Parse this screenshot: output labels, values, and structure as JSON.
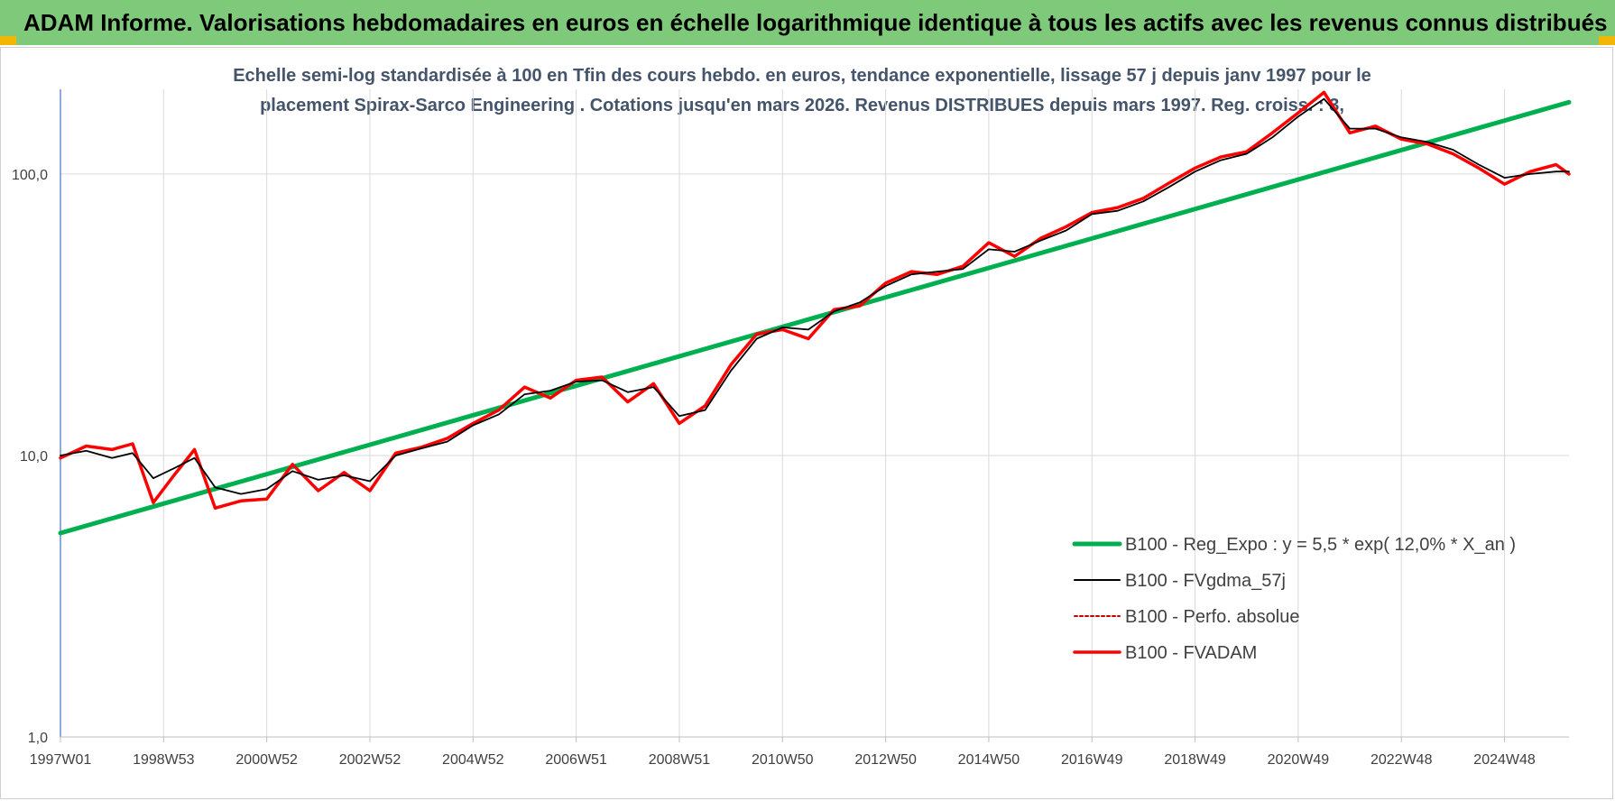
{
  "header": {
    "title": "ADAM Informe. Valorisations hebdomadaires en euros en échelle logarithmique identique à tous les actifs avec les revenus connus distribués"
  },
  "colors": {
    "banner": "#7fc97a",
    "corner_accent": "#f2b705",
    "trend": "#00b050",
    "smoothed": "#000000",
    "absolute_perf": "#c00000",
    "fvadam": "#ff0000",
    "subtitle_text": "#44546a",
    "axis_line": "#4472c4"
  },
  "chart_data": {
    "type": "line",
    "title_lines": [
      "Echelle semi-log standardisée à 100 en Tfin des cours hebdo. en euros, tendance exponentielle, lissage 57 j depuis janv 1997 pour le",
      "placement Spirax-Sarco Engineering . Cotations jusqu'en mars 2026. Revenus DISTRIBUES depuis mars 1997. Reg. croiss. : 3,"
    ],
    "y_scale": "log",
    "ylim": [
      1,
      200
    ],
    "xlim": [
      1997.0,
      2026.25
    ],
    "y_ticks": [
      {
        "value": 1,
        "label": "1,0"
      },
      {
        "value": 10,
        "label": "10,0"
      },
      {
        "value": 100,
        "label": "100,0"
      }
    ],
    "x_ticks": [
      {
        "value": 1997.0,
        "label": "1997W01"
      },
      {
        "value": 1999.0,
        "label": "1998W53"
      },
      {
        "value": 2001.0,
        "label": "2000W52"
      },
      {
        "value": 2003.0,
        "label": "2002W52"
      },
      {
        "value": 2005.0,
        "label": "2004W52"
      },
      {
        "value": 2007.0,
        "label": "2006W51"
      },
      {
        "value": 2009.0,
        "label": "2008W51"
      },
      {
        "value": 2011.0,
        "label": "2010W50"
      },
      {
        "value": 2013.0,
        "label": "2012W50"
      },
      {
        "value": 2015.0,
        "label": "2014W50"
      },
      {
        "value": 2017.0,
        "label": "2016W49"
      },
      {
        "value": 2019.0,
        "label": "2018W49"
      },
      {
        "value": 2021.0,
        "label": "2020W49"
      },
      {
        "value": 2023.0,
        "label": "2022W48"
      },
      {
        "value": 2025.0,
        "label": "2024W48"
      }
    ],
    "grid": true,
    "legend_position": "bottom-right",
    "series": [
      {
        "name": "B100 - Reg_Expo : y = 5,5 * exp( 12,0% * X_an )",
        "kind": "trend",
        "x": [
          1997.0,
          2026.25
        ],
        "y": [
          5.3,
          180
        ]
      },
      {
        "name": "B100 - FVgdma_57j",
        "kind": "smoothed",
        "x": [
          1997.0,
          1997.5,
          1998.0,
          1998.4,
          1998.8,
          1999.2,
          1999.6,
          2000.0,
          2000.5,
          2001.0,
          2001.5,
          2002.0,
          2002.5,
          2003.0,
          2003.5,
          2004.0,
          2004.5,
          2005.0,
          2005.5,
          2006.0,
          2006.5,
          2007.0,
          2007.5,
          2008.0,
          2008.5,
          2009.0,
          2009.5,
          2010.0,
          2010.5,
          2011.0,
          2011.5,
          2012.0,
          2012.5,
          2013.0,
          2013.5,
          2014.0,
          2014.5,
          2015.0,
          2015.5,
          2016.0,
          2016.5,
          2017.0,
          2017.5,
          2018.0,
          2018.5,
          2019.0,
          2019.5,
          2020.0,
          2020.5,
          2021.0,
          2021.5,
          2022.0,
          2022.5,
          2023.0,
          2023.5,
          2024.0,
          2024.5,
          2025.0,
          2025.5,
          2026.0,
          2026.25
        ],
        "y": [
          10.0,
          10.4,
          9.8,
          10.2,
          8.3,
          9.0,
          9.8,
          7.7,
          7.3,
          7.6,
          8.8,
          8.2,
          8.5,
          8.1,
          10.0,
          10.6,
          11.2,
          12.8,
          14.0,
          16.5,
          17.0,
          18.3,
          18.5,
          16.8,
          17.5,
          13.8,
          14.5,
          20.0,
          26.0,
          28.5,
          28.0,
          32.5,
          35.0,
          40.0,
          44.0,
          45.0,
          46.0,
          54.0,
          53.0,
          58.0,
          63.0,
          72.0,
          74.0,
          80.0,
          90.0,
          102.0,
          112.0,
          118.0,
          135.0,
          160.0,
          185.0,
          145.0,
          145.0,
          135.0,
          130.0,
          122.0,
          108.0,
          97.0,
          100.0,
          102.0,
          102.0
        ]
      },
      {
        "name": "B100 - Perfo. absolue",
        "kind": "absolute",
        "x": [
          1997.0,
          1997.5,
          1998.0,
          1998.4,
          1998.8,
          1999.2,
          1999.6,
          2000.0,
          2000.5,
          2001.0,
          2001.5,
          2002.0,
          2002.5,
          2003.0,
          2003.5,
          2004.0,
          2004.5,
          2005.0,
          2005.5,
          2006.0,
          2006.5,
          2007.0,
          2007.5,
          2008.0,
          2008.5,
          2009.0,
          2009.5,
          2010.0,
          2010.5,
          2011.0,
          2011.5,
          2012.0,
          2012.5,
          2013.0,
          2013.5,
          2014.0,
          2014.5,
          2015.0,
          2015.5,
          2016.0,
          2016.5,
          2017.0,
          2017.5,
          2018.0,
          2018.5,
          2019.0,
          2019.5,
          2020.0,
          2020.5,
          2021.0,
          2021.5,
          2022.0,
          2022.5,
          2023.0,
          2023.5,
          2024.0,
          2024.5,
          2025.0,
          2025.5,
          2026.0,
          2026.25
        ],
        "y": [
          9.8,
          10.8,
          10.5,
          11.0,
          6.8,
          8.5,
          10.5,
          6.5,
          6.9,
          7.0,
          9.3,
          7.5,
          8.7,
          7.5,
          10.2,
          10.7,
          11.5,
          13.0,
          14.5,
          17.5,
          16.0,
          18.5,
          19.0,
          15.5,
          18.0,
          13.0,
          15.0,
          21.0,
          27.0,
          28.0,
          26.0,
          33.0,
          34.0,
          41.0,
          45.0,
          44.0,
          47.0,
          57.0,
          51.0,
          59.0,
          65.0,
          73.0,
          76.0,
          82.0,
          93.0,
          105.0,
          115.0,
          120.0,
          140.0,
          165.0,
          195.0,
          140.0,
          148.0,
          133.0,
          128.0,
          118.0,
          105.0,
          92.0,
          102.0,
          108.0,
          100.0
        ]
      },
      {
        "name": "B100 - FVADAM",
        "kind": "fvadam",
        "x": [
          1997.0,
          1997.5,
          1998.0,
          1998.4,
          1998.8,
          1999.2,
          1999.6,
          2000.0,
          2000.5,
          2001.0,
          2001.5,
          2002.0,
          2002.5,
          2003.0,
          2003.5,
          2004.0,
          2004.5,
          2005.0,
          2005.5,
          2006.0,
          2006.5,
          2007.0,
          2007.5,
          2008.0,
          2008.5,
          2009.0,
          2009.5,
          2010.0,
          2010.5,
          2011.0,
          2011.5,
          2012.0,
          2012.5,
          2013.0,
          2013.5,
          2014.0,
          2014.5,
          2015.0,
          2015.5,
          2016.0,
          2016.5,
          2017.0,
          2017.5,
          2018.0,
          2018.5,
          2019.0,
          2019.5,
          2020.0,
          2020.5,
          2021.0,
          2021.5,
          2022.0,
          2022.5,
          2023.0,
          2023.5,
          2024.0,
          2024.5,
          2025.0,
          2025.5,
          2026.0,
          2026.25
        ],
        "y": [
          9.8,
          10.8,
          10.5,
          11.0,
          6.8,
          8.5,
          10.5,
          6.5,
          6.9,
          7.0,
          9.3,
          7.5,
          8.7,
          7.5,
          10.2,
          10.7,
          11.5,
          13.0,
          14.5,
          17.5,
          16.0,
          18.5,
          19.0,
          15.5,
          18.0,
          13.0,
          15.0,
          21.0,
          27.0,
          28.0,
          26.0,
          33.0,
          34.0,
          41.0,
          45.0,
          44.0,
          47.0,
          57.0,
          51.0,
          59.0,
          65.0,
          73.0,
          76.0,
          82.0,
          93.0,
          105.0,
          115.0,
          120.0,
          140.0,
          165.0,
          195.0,
          140.0,
          148.0,
          133.0,
          128.0,
          118.0,
          105.0,
          92.0,
          102.0,
          108.0,
          100.0
        ]
      }
    ]
  }
}
